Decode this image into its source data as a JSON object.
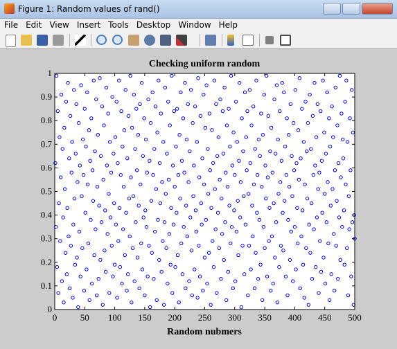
{
  "window": {
    "title": "Figure 1: Random values of rand()",
    "menu": [
      "File",
      "Edit",
      "View",
      "Insert",
      "Tools",
      "Desktop",
      "Window",
      "Help"
    ]
  },
  "chart_data": {
    "type": "scatter",
    "title": "Checking uniform random",
    "xlabel": "Random nubmers",
    "color": "#0000ff",
    "marker": "circle",
    "xlim": [
      0,
      500
    ],
    "ylim": [
      0,
      1
    ],
    "xticks": [
      0,
      50,
      100,
      150,
      200,
      250,
      300,
      350,
      400,
      450,
      500
    ],
    "yticks": [
      0,
      0.1,
      0.2,
      0.3,
      0.4,
      0.5,
      0.6,
      0.7,
      0.8,
      0.9,
      1
    ],
    "x": [
      1,
      2,
      3,
      4,
      5,
      6,
      7,
      8,
      9,
      10,
      11,
      12,
      13,
      14,
      15,
      16,
      17,
      18,
      19,
      20,
      21,
      22,
      23,
      24,
      25,
      26,
      27,
      28,
      29,
      30,
      31,
      32,
      33,
      34,
      35,
      36,
      37,
      38,
      39,
      40,
      41,
      42,
      43,
      44,
      45,
      46,
      47,
      48,
      49,
      50,
      51,
      52,
      53,
      54,
      55,
      56,
      57,
      58,
      59,
      60,
      61,
      62,
      63,
      64,
      65,
      66,
      67,
      68,
      69,
      70,
      71,
      72,
      73,
      74,
      75,
      76,
      77,
      78,
      79,
      80,
      81,
      82,
      83,
      84,
      85,
      86,
      87,
      88,
      89,
      90,
      91,
      92,
      93,
      94,
      95,
      96,
      97,
      98,
      99,
      100,
      101,
      102,
      103,
      104,
      105,
      106,
      107,
      108,
      109,
      110,
      111,
      112,
      113,
      114,
      115,
      116,
      117,
      118,
      119,
      120,
      121,
      122,
      123,
      124,
      125,
      126,
      127,
      128,
      129,
      130,
      131,
      132,
      133,
      134,
      135,
      136,
      137,
      138,
      139,
      140,
      141,
      142,
      143,
      144,
      145,
      146,
      147,
      148,
      149,
      150,
      151,
      152,
      153,
      154,
      155,
      156,
      157,
      158,
      159,
      160,
      161,
      162,
      163,
      164,
      165,
      166,
      167,
      168,
      169,
      170,
      171,
      172,
      173,
      174,
      175,
      176,
      177,
      178,
      179,
      180,
      181,
      182,
      183,
      184,
      185,
      186,
      187,
      188,
      189,
      190,
      191,
      192,
      193,
      194,
      195,
      196,
      197,
      198,
      199,
      200,
      201,
      202,
      203,
      204,
      205,
      206,
      207,
      208,
      209,
      210,
      211,
      212,
      213,
      214,
      215,
      216,
      217,
      218,
      219,
      220,
      221,
      222,
      223,
      224,
      225,
      226,
      227,
      228,
      229,
      230,
      231,
      232,
      233,
      234,
      235,
      236,
      237,
      238,
      239,
      240,
      241,
      242,
      243,
      244,
      245,
      246,
      247,
      248,
      249,
      250,
      251,
      252,
      253,
      254,
      255,
      256,
      257,
      258,
      259,
      260,
      261,
      262,
      263,
      264,
      265,
      266,
      267,
      268,
      269,
      270,
      271,
      272,
      273,
      274,
      275,
      276,
      277,
      278,
      279,
      280,
      281,
      282,
      283,
      284,
      285,
      286,
      287,
      288,
      289,
      290,
      291,
      292,
      293,
      294,
      295,
      296,
      297,
      298,
      299,
      300,
      301,
      302,
      303,
      304,
      305,
      306,
      307,
      308,
      309,
      310,
      311,
      312,
      313,
      314,
      315,
      316,
      317,
      318,
      319,
      320,
      321,
      322,
      323,
      324,
      325,
      326,
      327,
      328,
      329,
      330,
      331,
      332,
      333,
      334,
      335,
      336,
      337,
      338,
      339,
      340,
      341,
      342,
      343,
      344,
      345,
      346,
      347,
      348,
      349,
      350,
      351,
      352,
      353,
      354,
      355,
      356,
      357,
      358,
      359,
      360,
      361,
      362,
      363,
      364,
      365,
      366,
      367,
      368,
      369,
      370,
      371,
      372,
      373,
      374,
      375,
      376,
      377,
      378,
      379,
      380,
      381,
      382,
      383,
      384,
      385,
      386,
      387,
      388,
      389,
      390,
      391,
      392,
      393,
      394,
      395,
      396,
      397,
      398,
      399,
      400,
      401,
      402,
      403,
      404,
      405,
      406,
      407,
      408,
      409,
      410,
      411,
      412,
      413,
      414,
      415,
      416,
      417,
      418,
      419,
      420,
      421,
      422,
      423,
      424,
      425,
      426,
      427,
      428,
      429,
      430,
      431,
      432,
      433,
      434,
      435,
      436,
      437,
      438,
      439,
      440,
      441,
      442,
      443,
      444,
      445,
      446,
      447,
      448,
      449,
      450,
      451,
      452,
      453,
      454,
      455,
      456,
      457,
      458,
      459,
      460,
      461,
      462,
      463,
      464,
      465,
      466,
      467,
      468,
      469,
      470,
      471,
      472,
      473,
      474,
      475,
      476,
      477,
      478,
      479,
      480,
      481,
      482,
      483,
      484,
      485,
      486,
      487,
      488,
      489,
      490,
      491,
      492,
      493,
      494,
      495,
      496,
      497,
      498,
      499,
      500
    ],
    "values": [
      0.62,
      0.35,
      0.99,
      0.18,
      0.84,
      0.07,
      0.45,
      0.73,
      0.29,
      0.56,
      0.91,
      0.12,
      0.68,
      0.39,
      0.03,
      0.77,
      0.51,
      0.24,
      0.88,
      0.15,
      0.43,
      0.96,
      0.31,
      0.64,
      0.09,
      0.82,
      0.27,
      0.58,
      0.71,
      0.05,
      0.36,
      0.93,
      0.47,
      0.19,
      0.66,
      0.87,
      0.22,
      0.54,
      0.01,
      0.79,
      0.33,
      0.61,
      0.14,
      0.95,
      0.48,
      0.26,
      0.72,
      0.57,
      0.08,
      0.85,
      0.41,
      0.69,
      0.17,
      0.92,
      0.53,
      0.28,
      0.76,
      0.04,
      0.63,
      0.38,
      0.81,
      0.11,
      0.59,
      0.46,
      0.97,
      0.23,
      0.67,
      0.34,
      0.89,
      0.06,
      0.52,
      0.74,
      0.13,
      0.44,
      0.98,
      0.21,
      0.65,
      0.37,
      0.86,
      0.02,
      0.55,
      0.78,
      0.25,
      0.42,
      0.16,
      0.94,
      0.61,
      0.32,
      0.83,
      0.49,
      0.07,
      0.71,
      0.39,
      0.58,
      0.27,
      0.9,
      0.14,
      0.66,
      0.45,
      0.19,
      0.73,
      0.36,
      0.88,
      0.05,
      0.62,
      0.29,
      0.97,
      0.43,
      0.18,
      0.57,
      0.84,
      0.11,
      0.69,
      0.34,
      0.52,
      0.76,
      0.23,
      0.93,
      0.41,
      0.08,
      0.64,
      0.15,
      0.82,
      0.47,
      0.31,
      0.99,
      0.56,
      0.03,
      0.77,
      0.26,
      0.48,
      0.91,
      0.12,
      0.68,
      0.37,
      0.85,
      0.59,
      0.22,
      0.74,
      0.44,
      0.09,
      0.87,
      0.53,
      0.28,
      0.96,
      0.17,
      0.65,
      0.39,
      0.81,
      0.06,
      0.42,
      0.72,
      0.35,
      0.58,
      0.14,
      0.89,
      0.27,
      0.63,
      0.01,
      0.79,
      0.46,
      0.24,
      0.92,
      0.57,
      0.13,
      0.68,
      0.33,
      0.86,
      0.51,
      0.04,
      0.75,
      0.38,
      0.97,
      0.21,
      0.62,
      0.45,
      0.83,
      0.16,
      0.54,
      0.29,
      0.71,
      0.02,
      0.37,
      0.94,
      0.49,
      0.26,
      0.66,
      0.11,
      0.88,
      0.55,
      0.32,
      0.78,
      0.19,
      0.43,
      0.99,
      0.07,
      0.61,
      0.36,
      0.84,
      0.52,
      0.18,
      0.69,
      0.41,
      0.85,
      0.23,
      0.57,
      0.03,
      0.74,
      0.47,
      0.92,
      0.28,
      0.63,
      0.15,
      0.81,
      0.35,
      0.58,
      0.96,
      0.09,
      0.44,
      0.72,
      0.31,
      0.87,
      0.54,
      0.12,
      0.67,
      0.39,
      0.93,
      0.25,
      0.06,
      0.79,
      0.48,
      0.61,
      0.17,
      0.86,
      0.42,
      0.33,
      0.71,
      0.05,
      0.98,
      0.27,
      0.56,
      0.14,
      0.82,
      0.45,
      0.36,
      0.64,
      0.08,
      0.91,
      0.53,
      0.22,
      0.77,
      0.38,
      0.95,
      0.11,
      0.68,
      0.49,
      0.24,
      0.83,
      0.59,
      0.02,
      0.43,
      0.76,
      0.29,
      0.62,
      0.18,
      0.97,
      0.51,
      0.34,
      0.87,
      0.07,
      0.65,
      0.41,
      0.73,
      0.26,
      0.55,
      0.89,
      0.13,
      0.47,
      0.32,
      0.84,
      0.66,
      0.21,
      0.94,
      0.37,
      0.58,
      0.04,
      0.78,
      0.52,
      0.16,
      0.85,
      0.44,
      0.69,
      0.28,
      0.99,
      0.35,
      0.61,
      0.09,
      0.75,
      0.42,
      0.57,
      0.12,
      0.88,
      0.33,
      0.71,
      0.46,
      0.23,
      0.63,
      0.96,
      0.39,
      0.54,
      0.01,
      0.81,
      0.27,
      0.67,
      0.48,
      0.15,
      0.92,
      0.36,
      0.73,
      0.59,
      0.84,
      0.06,
      0.49,
      0.27,
      0.93,
      0.62,
      0.17,
      0.78,
      0.44,
      0.31,
      0.86,
      0.53,
      0.09,
      0.68,
      0.24,
      0.97,
      0.41,
      0.57,
      0.13,
      0.72,
      0.38,
      0.65,
      0.19,
      0.83,
      0.52,
      0.04,
      0.74,
      0.35,
      0.91,
      0.26,
      0.61,
      0.47,
      0.99,
      0.14,
      0.56,
      0.82,
      0.29,
      0.43,
      0.67,
      0.08,
      0.77,
      0.31,
      0.58,
      0.11,
      0.45,
      0.89,
      0.22,
      0.66,
      0.37,
      0.95,
      0.03,
      0.72,
      0.49,
      0.18,
      0.84,
      0.54,
      0.27,
      0.63,
      0.96,
      0.41,
      0.25,
      0.92,
      0.46,
      0.69,
      0.14,
      0.57,
      0.81,
      0.06,
      0.38,
      0.74,
      0.52,
      0.21,
      0.87,
      0.33,
      0.65,
      0.48,
      0.12,
      0.79,
      0.59,
      0.35,
      0.93,
      0.17,
      0.62,
      0.43,
      0.28,
      0.76,
      0.55,
      0.98,
      0.09,
      0.64,
      0.31,
      0.85,
      0.42,
      0.19,
      0.71,
      0.05,
      0.53,
      0.88,
      0.26,
      0.67,
      0.47,
      0.79,
      0.02,
      0.36,
      0.91,
      0.24,
      0.68,
      0.45,
      0.13,
      0.82,
      0.57,
      0.34,
      0.96,
      0.61,
      0.18,
      0.73,
      0.39,
      0.87,
      0.51,
      0.07,
      0.58,
      0.29,
      0.84,
      0.16,
      0.63,
      0.41,
      0.97,
      0.22,
      0.75,
      0.49,
      0.11,
      0.66,
      0.37,
      0.92,
      0.54,
      0.28,
      0.81,
      0.04,
      0.69,
      0.44,
      0.15,
      0.86,
      0.51,
      0.73,
      0.32,
      0.08,
      0.59,
      0.94,
      0.27,
      0.46,
      0.78,
      0.13,
      0.62,
      0.39,
      0.99,
      0.21,
      0.56,
      0.83,
      0.35,
      0.72,
      0.64,
      0.42,
      0.19,
      0.88,
      0.53,
      0.97,
      0.26,
      0.71,
      0.06,
      0.48,
      0.34,
      0.81,
      0.59,
      0.14,
      0.93,
      0.37,
      0.75,
      0.02,
      0.4,
      0.3
    ]
  }
}
